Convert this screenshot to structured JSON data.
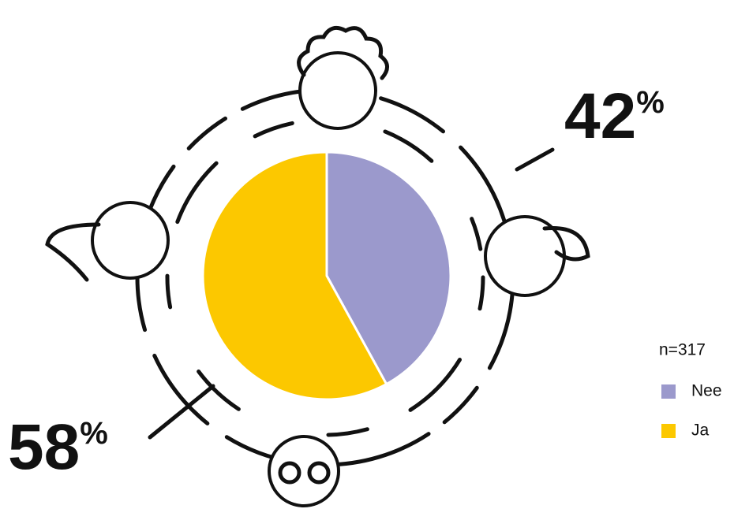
{
  "chart_data": {
    "type": "pie",
    "note": "n=317",
    "categories": [
      "Nee",
      "Ja"
    ],
    "values": [
      42,
      58
    ],
    "value_labels": [
      "42%",
      "58%"
    ],
    "colors": [
      "#9b99cc",
      "#fcc800"
    ]
  }
}
